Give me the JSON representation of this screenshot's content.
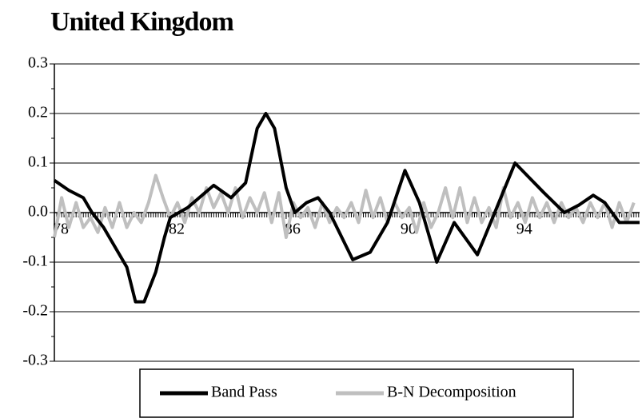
{
  "chart_data": {
    "type": "line",
    "title": "United Kingdom",
    "xlim": [
      78,
      98.2
    ],
    "xticks": [
      78,
      82,
      86,
      90,
      94
    ],
    "ylim": [
      -0.3,
      0.3
    ],
    "yticks": [
      0.3,
      0.2,
      0.1,
      {
        "value": 0,
        "label": "0.0"
      },
      -0.1,
      -0.2,
      -0.3
    ],
    "grid": true,
    "legend": "bottom",
    "series": [
      {
        "name": "Band Pass",
        "color": "#000000",
        "x": [
          78,
          78.5,
          79,
          79.3,
          79.7,
          80,
          80.5,
          80.8,
          81.1,
          81.5,
          81.8,
          82,
          82.3,
          82.6,
          83,
          83.5,
          84.1,
          84.6,
          85.0,
          85.3,
          85.6,
          86.0,
          86.3,
          86.7,
          87.1,
          87.5,
          88.3,
          88.9,
          89.5,
          90.1,
          90.6,
          91.2,
          91.8,
          92.6,
          93.2,
          93.9,
          94.4,
          94.9,
          95.6,
          96.1,
          96.6,
          97.0,
          97.5,
          98.2
        ],
        "values": [
          0.065,
          0.045,
          0.03,
          0.0,
          -0.03,
          -0.06,
          -0.11,
          -0.18,
          -0.18,
          -0.12,
          -0.05,
          -0.01,
          0.0,
          0.01,
          0.03,
          0.055,
          0.03,
          0.06,
          0.17,
          0.2,
          0.17,
          0.05,
          0.0,
          0.02,
          0.03,
          0.0,
          -0.095,
          -0.08,
          -0.02,
          0.085,
          0.02,
          -0.1,
          -0.02,
          -0.085,
          0.0,
          0.1,
          0.07,
          0.04,
          0.0,
          0.015,
          0.035,
          0.02,
          -0.02,
          -0.02
        ]
      },
      {
        "name": "B-N Decomposition",
        "color": "#bfbfbf",
        "x": [
          78,
          78.25,
          78.5,
          78.75,
          79,
          79.25,
          79.5,
          79.75,
          80,
          80.25,
          80.5,
          80.75,
          81,
          81.25,
          81.5,
          81.75,
          82,
          82.25,
          82.5,
          82.75,
          83,
          83.25,
          83.5,
          83.75,
          84,
          84.25,
          84.5,
          84.75,
          85,
          85.25,
          85.5,
          85.75,
          86,
          86.25,
          86.5,
          86.75,
          87,
          87.25,
          87.5,
          87.75,
          88,
          88.25,
          88.5,
          88.75,
          89,
          89.25,
          89.5,
          89.75,
          90,
          90.25,
          90.5,
          90.75,
          91,
          91.25,
          91.5,
          91.75,
          92,
          92.25,
          92.5,
          92.75,
          93,
          93.25,
          93.5,
          93.75,
          94,
          94.25,
          94.5,
          94.75,
          95,
          95.25,
          95.5,
          95.75,
          96,
          96.25,
          96.5,
          96.75,
          97,
          97.25,
          97.5,
          97.75,
          98
        ],
        "values": [
          -0.05,
          0.03,
          -0.03,
          0.02,
          -0.03,
          -0.01,
          -0.04,
          0.01,
          -0.03,
          0.02,
          -0.03,
          0.0,
          -0.02,
          0.02,
          0.075,
          0.03,
          -0.01,
          0.02,
          -0.02,
          0.03,
          0.0,
          0.05,
          0.01,
          0.04,
          0.0,
          0.05,
          -0.01,
          0.03,
          0.0,
          0.04,
          -0.02,
          0.04,
          -0.05,
          0.02,
          -0.01,
          0.01,
          -0.03,
          0.02,
          -0.02,
          0.01,
          -0.01,
          0.02,
          -0.02,
          0.045,
          -0.01,
          0.03,
          -0.02,
          0.02,
          -0.01,
          0.01,
          -0.04,
          0.02,
          -0.03,
          0.0,
          0.05,
          -0.01,
          0.05,
          -0.02,
          0.03,
          -0.02,
          0.01,
          -0.03,
          0.05,
          -0.01,
          0.02,
          -0.02,
          0.03,
          -0.01,
          0.02,
          -0.02,
          0.02,
          -0.01,
          0.01,
          -0.02,
          0.02,
          -0.01,
          0.02,
          -0.03,
          0.02,
          -0.02,
          0.02
        ]
      }
    ]
  }
}
